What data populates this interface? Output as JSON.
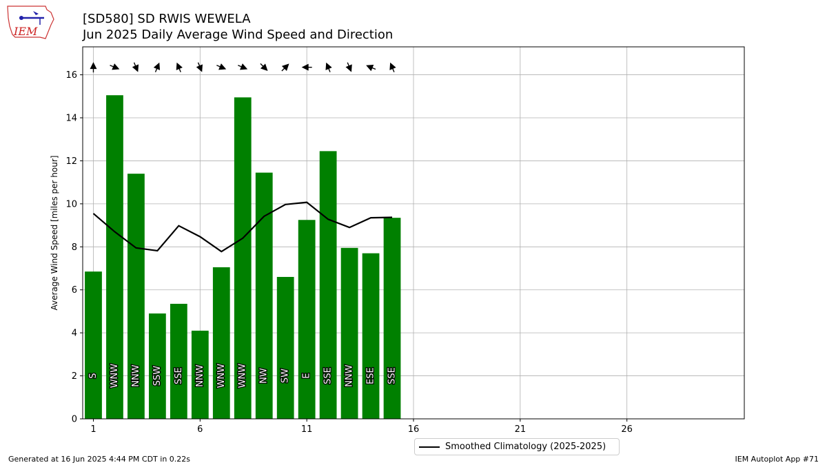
{
  "header": {
    "station_title": "[SD580] SD RWIS WEWELA",
    "subtitle": "Jun 2025 Daily Average Wind Speed and Direction",
    "logo_text": "IEM"
  },
  "footer": {
    "generated": "Generated at 16 Jun 2025 4:44 PM CDT in 0.22s",
    "app": "IEM Autoplot App #71"
  },
  "legend": {
    "label": "Smoothed Climatology (2025-2025)"
  },
  "colors": {
    "bar": "#008000",
    "climatology": "#000000",
    "grid": "#b0b0b0"
  },
  "chart_data": {
    "type": "bar",
    "title": "Jun 2025 Daily Average Wind Speed and Direction",
    "ylabel": "Average Wind Speed [miles per hour]",
    "xlabel": "",
    "xlim": [
      0.5,
      31.5
    ],
    "ylim": [
      0,
      17.3
    ],
    "x_ticks": [
      1,
      6,
      11,
      16,
      21,
      26
    ],
    "y_ticks": [
      0,
      2,
      4,
      6,
      8,
      10,
      12,
      14,
      16
    ],
    "grid": true,
    "legend_position": "bottom-center",
    "days": [
      1,
      2,
      3,
      4,
      5,
      6,
      7,
      8,
      9,
      10,
      11,
      12,
      13,
      14,
      15
    ],
    "values": [
      6.85,
      15.05,
      11.4,
      4.9,
      5.35,
      4.1,
      7.05,
      14.95,
      11.45,
      6.6,
      9.25,
      12.45,
      7.95,
      7.7,
      9.35
    ],
    "directions": [
      "S",
      "WNW",
      "NNW",
      "SSW",
      "SSE",
      "NNW",
      "WNW",
      "WNW",
      "NW",
      "SW",
      "E",
      "SSE",
      "NNW",
      "ESE",
      "SSE"
    ],
    "climatology": {
      "name": "Smoothed Climatology (2025-2025)",
      "x": [
        1,
        2,
        3,
        4,
        5,
        6,
        7,
        8,
        9,
        10,
        11,
        12,
        13,
        14,
        15
      ],
      "values": [
        9.55,
        8.7,
        7.95,
        7.82,
        8.98,
        8.47,
        7.78,
        8.4,
        9.42,
        9.97,
        10.07,
        9.28,
        8.9,
        9.35,
        9.37
      ]
    }
  }
}
